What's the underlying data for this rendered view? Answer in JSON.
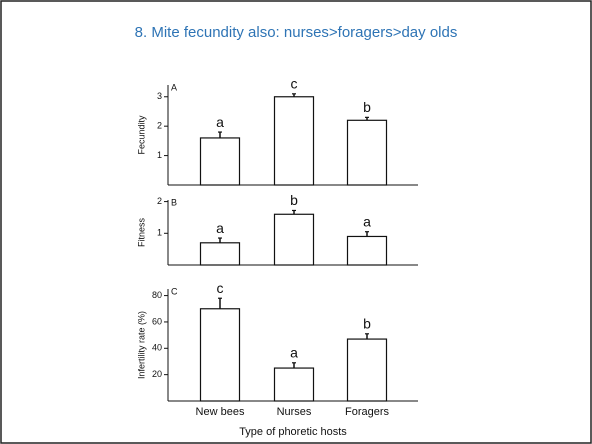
{
  "slide_title": "8. Mite fecundity also:  nurses>foragers>day olds",
  "chart_data": [
    {
      "type": "bar",
      "panel": "A",
      "y_label": "Fecundity",
      "values": [
        1.6,
        3.0,
        2.2
      ],
      "errors": [
        0.2,
        0.1,
        0.1
      ],
      "group_letters": [
        "a",
        "c",
        "b"
      ],
      "ylim": [
        0,
        3.4
      ],
      "yticks": [
        1,
        2,
        3
      ],
      "color": "#ffffff"
    },
    {
      "type": "bar",
      "panel": "B",
      "y_label": "Fitness",
      "values": [
        0.7,
        1.6,
        0.9
      ],
      "errors": [
        0.15,
        0.12,
        0.15
      ],
      "group_letters": [
        "a",
        "b",
        "a"
      ],
      "ylim": [
        0,
        2.05
      ],
      "yticks": [
        1,
        2
      ],
      "color": "#ffffff"
    },
    {
      "type": "bar",
      "panel": "C",
      "y_label": "Infertility rate (%)",
      "x_label": "Type of phoretic hosts",
      "categories": [
        "New bees",
        "Nurses",
        "Foragers"
      ],
      "values": [
        70,
        25,
        47
      ],
      "errors": [
        8,
        4,
        4
      ],
      "group_letters": [
        "c",
        "a",
        "b"
      ],
      "ylim": [
        0,
        85
      ],
      "yticks": [
        20,
        40,
        60,
        80
      ],
      "color": "#ffffff"
    }
  ]
}
